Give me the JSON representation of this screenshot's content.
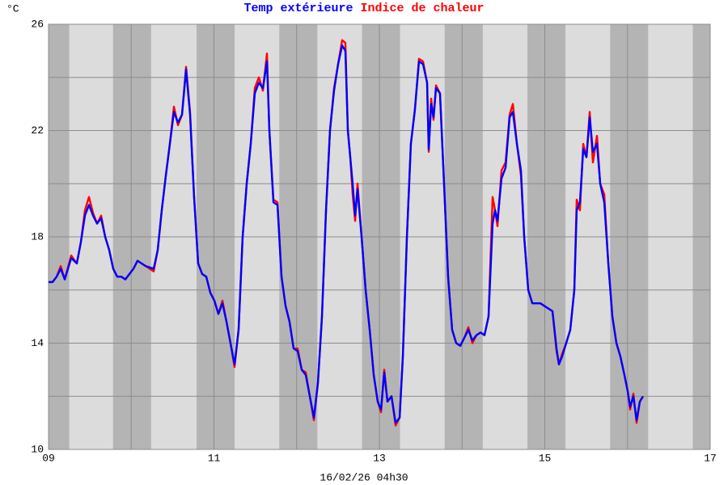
{
  "chart_data": {
    "type": "line",
    "y_unit": "°C",
    "xlabel": "16/02/26 04h30",
    "xlim": [
      9,
      17
    ],
    "xticks": [
      {
        "value": 9,
        "label": "09"
      },
      11,
      13,
      15,
      17
    ],
    "x_grid_minor": [
      10,
      12,
      14,
      16
    ],
    "ylim": [
      10,
      26
    ],
    "yticks": [
      10,
      14,
      18,
      22,
      26
    ],
    "y_grid_minor": [
      12,
      16,
      20,
      24
    ],
    "grid": true,
    "night_bands": [
      [
        9,
        9.25
      ],
      [
        9.78,
        10.24
      ],
      [
        10.79,
        11.25
      ],
      [
        11.79,
        12.25
      ],
      [
        12.79,
        13.25
      ],
      [
        13.79,
        14.25
      ],
      [
        14.79,
        15.25
      ],
      [
        15.79,
        16.25
      ],
      [
        16.79,
        17
      ]
    ],
    "band_colors": {
      "day": "#dcdcdc",
      "night": "#b4b4b4"
    },
    "x": [
      9.0,
      9.049,
      9.098,
      9.147,
      9.196,
      9.274,
      9.342,
      9.391,
      9.44,
      9.489,
      9.538,
      9.587,
      9.636,
      9.685,
      9.734,
      9.782,
      9.831,
      9.88,
      9.929,
      9.978,
      10.027,
      10.076,
      10.125,
      10.174,
      10.271,
      10.32,
      10.369,
      10.418,
      10.467,
      10.516,
      10.565,
      10.614,
      10.663,
      10.711,
      10.76,
      10.809,
      10.858,
      10.907,
      10.956,
      11.005,
      11.054,
      11.103,
      11.152,
      11.2,
      11.249,
      11.298,
      11.347,
      11.396,
      11.445,
      11.494,
      11.543,
      11.592,
      11.641,
      11.67,
      11.719,
      11.768,
      11.817,
      11.866,
      11.914,
      11.963,
      12.012,
      12.061,
      12.11,
      12.159,
      12.208,
      12.257,
      12.306,
      12.355,
      12.403,
      12.452,
      12.501,
      12.55,
      12.589,
      12.619,
      12.648,
      12.677,
      12.707,
      12.736,
      12.785,
      12.834,
      12.883,
      12.932,
      12.98,
      13.02,
      13.059,
      13.098,
      13.147,
      13.196,
      13.245,
      13.284,
      13.333,
      13.381,
      13.43,
      13.479,
      13.528,
      13.577,
      13.597,
      13.626,
      13.655,
      13.685,
      13.733,
      13.782,
      13.831,
      13.88,
      13.929,
      13.978,
      14.027,
      14.076,
      14.125,
      14.174,
      14.223,
      14.271,
      14.32,
      14.369,
      14.399,
      14.428,
      14.477,
      14.526,
      14.575,
      14.614,
      14.663,
      14.712,
      14.751,
      14.8,
      14.849,
      14.898,
      14.946,
      14.995,
      15.044,
      15.093,
      15.142,
      15.171,
      15.21,
      15.259,
      15.308,
      15.357,
      15.386,
      15.425,
      15.465,
      15.504,
      15.543,
      15.582,
      15.631,
      15.67,
      15.719,
      15.768,
      15.817,
      15.866,
      15.914,
      15.963,
      16.002,
      16.032,
      16.071,
      16.11,
      16.149,
      16.188
    ],
    "series": [
      {
        "name": "Temp extérieure",
        "color": "#0000ff",
        "values": [
          16.3,
          16.3,
          16.5,
          16.8,
          16.4,
          17.2,
          17.0,
          17.8,
          18.8,
          19.2,
          18.8,
          18.5,
          18.7,
          18.0,
          17.5,
          16.8,
          16.5,
          16.5,
          16.4,
          16.6,
          16.8,
          17.1,
          17.0,
          16.9,
          16.8,
          17.5,
          19.0,
          20.3,
          21.5,
          22.7,
          22.3,
          22.6,
          24.3,
          22.6,
          19.5,
          17.0,
          16.6,
          16.5,
          15.9,
          15.6,
          15.1,
          15.5,
          14.8,
          14.0,
          13.2,
          14.5,
          18.0,
          20.0,
          21.5,
          23.4,
          23.8,
          23.6,
          24.6,
          22.0,
          19.3,
          19.2,
          16.5,
          15.4,
          14.8,
          13.8,
          13.7,
          13.0,
          12.8,
          12.0,
          11.2,
          12.5,
          15.0,
          19.0,
          22.0,
          23.5,
          24.5,
          25.2,
          25.0,
          22.0,
          21.0,
          20.0,
          18.8,
          19.8,
          18.0,
          16.0,
          14.5,
          12.8,
          11.8,
          11.5,
          12.9,
          11.8,
          12.0,
          11.0,
          11.2,
          13.5,
          18.0,
          21.5,
          22.8,
          24.6,
          24.5,
          23.8,
          21.3,
          23.0,
          22.5,
          23.6,
          23.4,
          20.0,
          16.5,
          14.5,
          14.0,
          13.9,
          14.2,
          14.5,
          14.1,
          14.3,
          14.4,
          14.3,
          15.0,
          18.5,
          19.0,
          18.6,
          20.2,
          20.6,
          22.5,
          22.7,
          21.5,
          20.5,
          18.0,
          16.0,
          15.5,
          15.5,
          15.5,
          15.4,
          15.3,
          15.2,
          13.8,
          13.2,
          13.5,
          14.0,
          14.5,
          16.0,
          19.0,
          19.3,
          21.3,
          21.0,
          22.5,
          21.2,
          21.5,
          20.0,
          19.3,
          17.0,
          15.0,
          14.0,
          13.5,
          12.8,
          12.2,
          11.6,
          12.0,
          11.1,
          11.8,
          12.0
        ]
      },
      {
        "name": "Indice de chaleur",
        "color": "#ff0000",
        "values": [
          16.3,
          16.3,
          16.5,
          16.9,
          16.4,
          17.3,
          17.0,
          17.8,
          19.0,
          19.5,
          18.9,
          18.5,
          18.8,
          18.0,
          17.5,
          16.8,
          16.5,
          16.5,
          16.4,
          16.6,
          16.8,
          17.1,
          17.0,
          16.9,
          16.7,
          17.5,
          19.0,
          20.3,
          21.5,
          22.9,
          22.2,
          22.6,
          24.4,
          22.7,
          19.5,
          17.0,
          16.6,
          16.5,
          15.9,
          15.6,
          15.1,
          15.6,
          14.8,
          14.0,
          13.1,
          14.5,
          18.0,
          20.0,
          21.5,
          23.6,
          24.0,
          23.5,
          24.9,
          22.0,
          19.4,
          19.3,
          16.5,
          15.4,
          14.8,
          13.8,
          13.8,
          13.0,
          12.9,
          12.0,
          11.1,
          12.5,
          15.0,
          19.0,
          22.0,
          23.6,
          24.5,
          25.4,
          25.3,
          22.0,
          21.0,
          19.6,
          18.6,
          20.0,
          18.0,
          16.0,
          14.5,
          12.8,
          11.8,
          11.4,
          13.0,
          11.8,
          12.0,
          10.9,
          11.2,
          13.5,
          18.0,
          21.5,
          22.8,
          24.7,
          24.6,
          23.8,
          21.2,
          23.2,
          22.4,
          23.7,
          23.4,
          20.0,
          16.5,
          14.5,
          14.0,
          13.9,
          14.2,
          14.6,
          14.0,
          14.3,
          14.4,
          14.3,
          15.0,
          19.5,
          19.0,
          18.4,
          20.5,
          20.8,
          22.6,
          23.0,
          21.5,
          20.3,
          18.0,
          16.0,
          15.5,
          15.5,
          15.5,
          15.4,
          15.3,
          15.2,
          13.7,
          13.2,
          13.6,
          14.0,
          14.5,
          16.0,
          19.4,
          19.0,
          21.5,
          21.0,
          22.7,
          20.8,
          21.8,
          20.0,
          19.6,
          17.0,
          15.0,
          14.0,
          13.5,
          12.8,
          12.2,
          11.5,
          12.1,
          11.0,
          11.8,
          12.0
        ]
      }
    ]
  }
}
